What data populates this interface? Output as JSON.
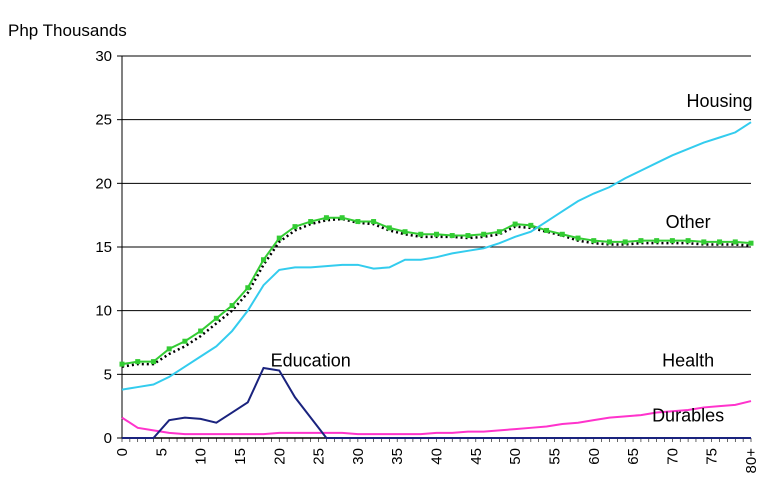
{
  "chart_data": {
    "type": "line",
    "ylabel": "Php Thousands",
    "ylim": [
      0,
      30
    ],
    "yticks": [
      "0",
      "5",
      "10",
      "15",
      "20",
      "25",
      "30"
    ],
    "xlim": [
      0,
      80
    ],
    "xticks": [
      "0",
      "5",
      "10",
      "15",
      "20",
      "25",
      "30",
      "35",
      "40",
      "45",
      "50",
      "55",
      "60",
      "65",
      "70",
      "75",
      "80+"
    ],
    "grid": "horizontal",
    "x": [
      0,
      2,
      4,
      6,
      8,
      10,
      12,
      14,
      16,
      18,
      20,
      22,
      24,
      26,
      28,
      30,
      32,
      34,
      36,
      38,
      40,
      42,
      44,
      46,
      48,
      50,
      52,
      54,
      56,
      58,
      60,
      62,
      64,
      66,
      68,
      70,
      72,
      74,
      76,
      78,
      80
    ],
    "series": [
      {
        "name": "Housing",
        "color": "#000000",
        "style": "dotted",
        "values": [
          5.6,
          5.8,
          5.8,
          6.6,
          7.2,
          8.0,
          9.0,
          10.0,
          11.4,
          13.6,
          15.4,
          16.3,
          16.8,
          17.1,
          17.2,
          16.9,
          16.8,
          16.3,
          16.0,
          15.8,
          15.8,
          15.8,
          15.7,
          15.8,
          16.0,
          16.6,
          16.5,
          16.2,
          15.9,
          15.5,
          15.3,
          15.2,
          15.2,
          15.3,
          15.3,
          15.3,
          15.3,
          15.2,
          15.2,
          15.2,
          15.1
        ]
      },
      {
        "name": "Other",
        "color": "#33cc33",
        "style": "square-markers",
        "values": [
          5.8,
          6.0,
          6.0,
          7.0,
          7.6,
          8.4,
          9.4,
          10.4,
          11.8,
          14.0,
          15.7,
          16.6,
          17.0,
          17.3,
          17.3,
          17.0,
          17.0,
          16.5,
          16.2,
          16.0,
          16.0,
          15.9,
          15.9,
          16.0,
          16.2,
          16.8,
          16.7,
          16.3,
          16.0,
          15.7,
          15.5,
          15.4,
          15.4,
          15.5,
          15.5,
          15.5,
          15.5,
          15.4,
          15.4,
          15.4,
          15.3
        ]
      },
      {
        "name": "Health",
        "color": "#33ccee",
        "style": "solid",
        "values": [
          3.8,
          4.0,
          4.2,
          4.8,
          5.6,
          6.4,
          7.2,
          8.4,
          10.0,
          12.0,
          13.2,
          13.4,
          13.4,
          13.5,
          13.6,
          13.6,
          13.3,
          13.4,
          14.0,
          14.0,
          14.2,
          14.5,
          14.7,
          14.9,
          15.3,
          15.8,
          16.2,
          17.0,
          17.8,
          18.6,
          19.2,
          19.7,
          20.4,
          21.0,
          21.6,
          22.2,
          22.7,
          23.2,
          23.6,
          24.0,
          24.8
        ]
      },
      {
        "name": "Durables",
        "color": "#ff33cc",
        "style": "solid",
        "values": [
          1.6,
          0.8,
          0.6,
          0.4,
          0.3,
          0.3,
          0.3,
          0.3,
          0.3,
          0.3,
          0.4,
          0.4,
          0.4,
          0.4,
          0.4,
          0.3,
          0.3,
          0.3,
          0.3,
          0.3,
          0.4,
          0.4,
          0.5,
          0.5,
          0.6,
          0.7,
          0.8,
          0.9,
          1.1,
          1.2,
          1.4,
          1.6,
          1.7,
          1.8,
          2.0,
          2.1,
          2.2,
          2.4,
          2.5,
          2.6,
          2.9
        ]
      },
      {
        "name": "Education",
        "color": "#1a237e",
        "style": "solid",
        "values": [
          0,
          0,
          0,
          1.4,
          1.6,
          1.5,
          1.2,
          2.0,
          2.8,
          5.5,
          5.3,
          3.2,
          1.6,
          0,
          0,
          0,
          0,
          0,
          0,
          0,
          0,
          0,
          0,
          0,
          0,
          0,
          0,
          0,
          0,
          0,
          0,
          0,
          0,
          0,
          0,
          0,
          0,
          0,
          0,
          0,
          0
        ]
      }
    ]
  }
}
